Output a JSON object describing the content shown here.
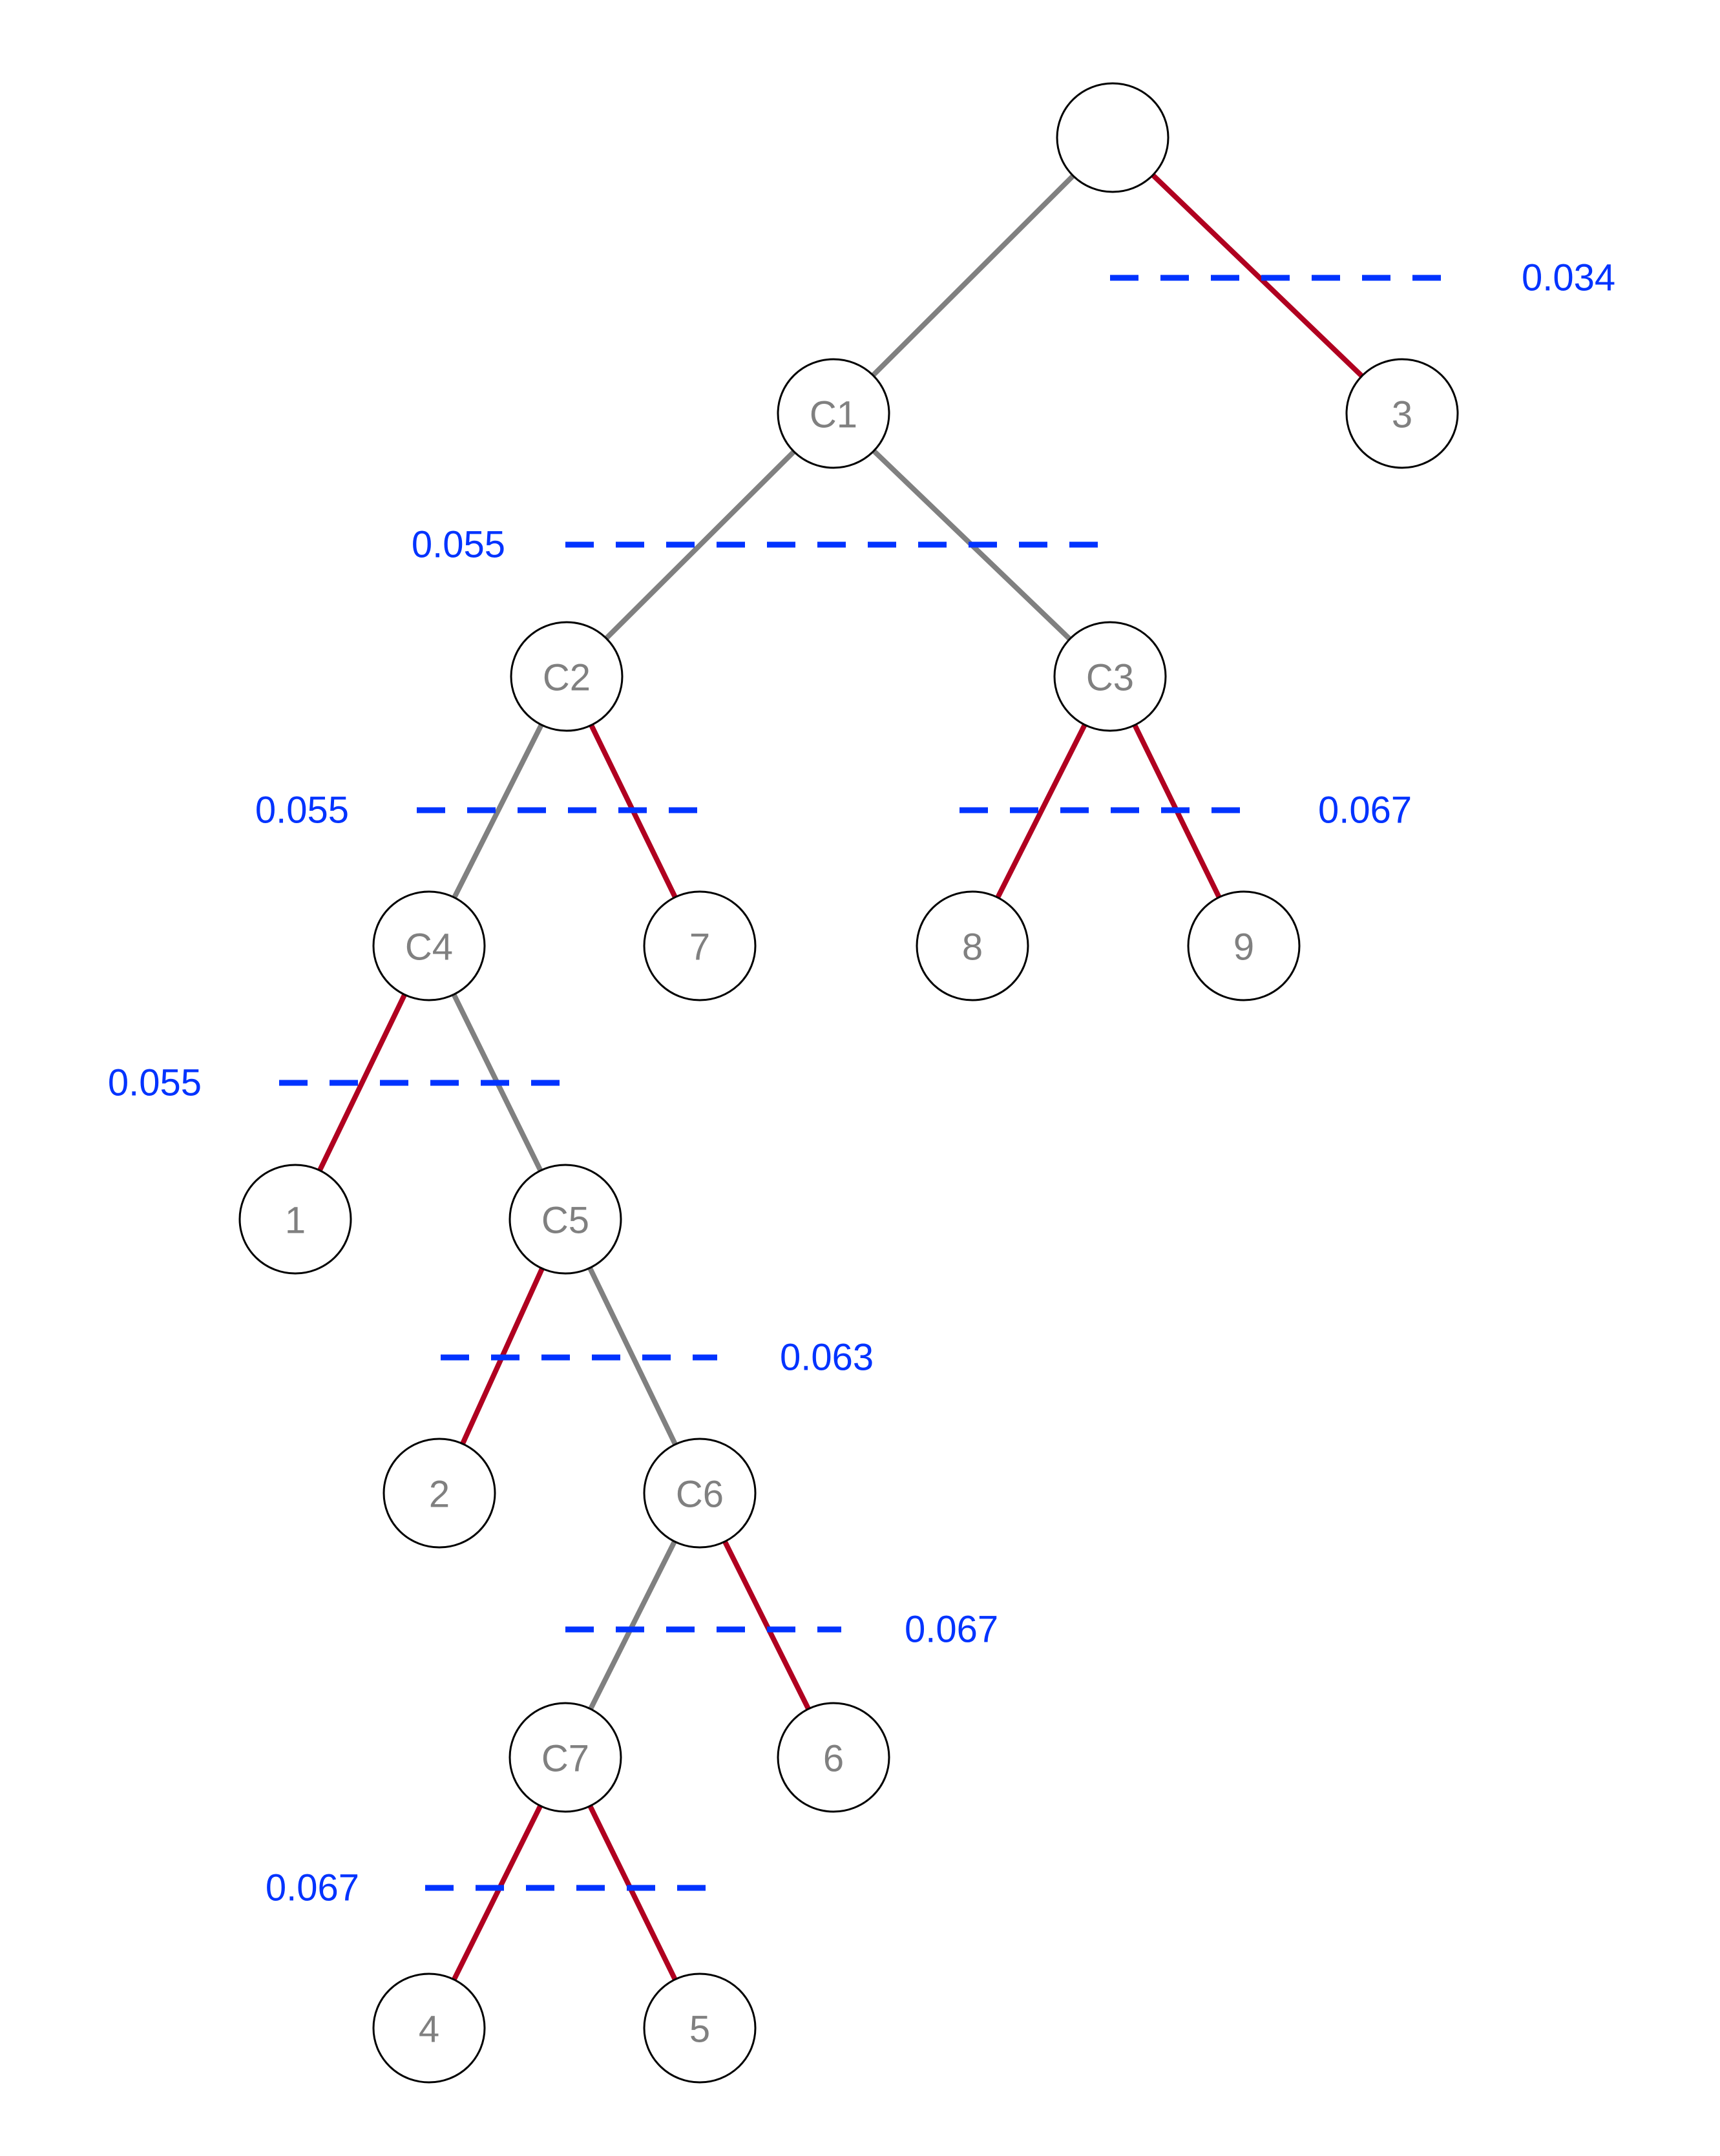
{
  "colors": {
    "gray_edge": "#808080",
    "red_edge": "#b00020",
    "threshold": "#0033ff",
    "node_stroke": "#000000",
    "node_fill": "#ffffff",
    "label": "#808080"
  },
  "nodes": [
    {
      "id": "root",
      "label": ""
    },
    {
      "id": "C1",
      "label": "C1"
    },
    {
      "id": "n3",
      "label": "3"
    },
    {
      "id": "C2",
      "label": "C2"
    },
    {
      "id": "C3",
      "label": "C3"
    },
    {
      "id": "C4",
      "label": "C4"
    },
    {
      "id": "n7",
      "label": "7"
    },
    {
      "id": "n8",
      "label": "8"
    },
    {
      "id": "n9",
      "label": "9"
    },
    {
      "id": "n1",
      "label": "1"
    },
    {
      "id": "C5",
      "label": "C5"
    },
    {
      "id": "n2",
      "label": "2"
    },
    {
      "id": "C6",
      "label": "C6"
    },
    {
      "id": "C7",
      "label": "C7"
    },
    {
      "id": "n6",
      "label": "6"
    },
    {
      "id": "n4",
      "label": "4"
    },
    {
      "id": "n5",
      "label": "5"
    }
  ],
  "edges": [
    {
      "from": "root",
      "to": "C1",
      "kind": "gray"
    },
    {
      "from": "root",
      "to": "n3",
      "kind": "red"
    },
    {
      "from": "C1",
      "to": "C2",
      "kind": "gray"
    },
    {
      "from": "C1",
      "to": "C3",
      "kind": "gray"
    },
    {
      "from": "C2",
      "to": "C4",
      "kind": "gray"
    },
    {
      "from": "C2",
      "to": "n7",
      "kind": "red"
    },
    {
      "from": "C3",
      "to": "n8",
      "kind": "red"
    },
    {
      "from": "C3",
      "to": "n9",
      "kind": "red"
    },
    {
      "from": "C4",
      "to": "n1",
      "kind": "red"
    },
    {
      "from": "C4",
      "to": "C5",
      "kind": "gray"
    },
    {
      "from": "C5",
      "to": "n2",
      "kind": "red"
    },
    {
      "from": "C5",
      "to": "C6",
      "kind": "gray"
    },
    {
      "from": "C6",
      "to": "C7",
      "kind": "gray"
    },
    {
      "from": "C6",
      "to": "n6",
      "kind": "red"
    },
    {
      "from": "C7",
      "to": "n4",
      "kind": "red"
    },
    {
      "from": "C7",
      "to": "n5",
      "kind": "red"
    }
  ],
  "thresholds": [
    {
      "id": "t-root",
      "value": "0.034"
    },
    {
      "id": "t-C1",
      "value": "0.055"
    },
    {
      "id": "t-C2",
      "value": "0.055"
    },
    {
      "id": "t-C3",
      "value": "0.067"
    },
    {
      "id": "t-C4",
      "value": "0.055"
    },
    {
      "id": "t-C5",
      "value": "0.063"
    },
    {
      "id": "t-C6",
      "value": "0.067"
    },
    {
      "id": "t-C7",
      "value": "0.067"
    }
  ]
}
